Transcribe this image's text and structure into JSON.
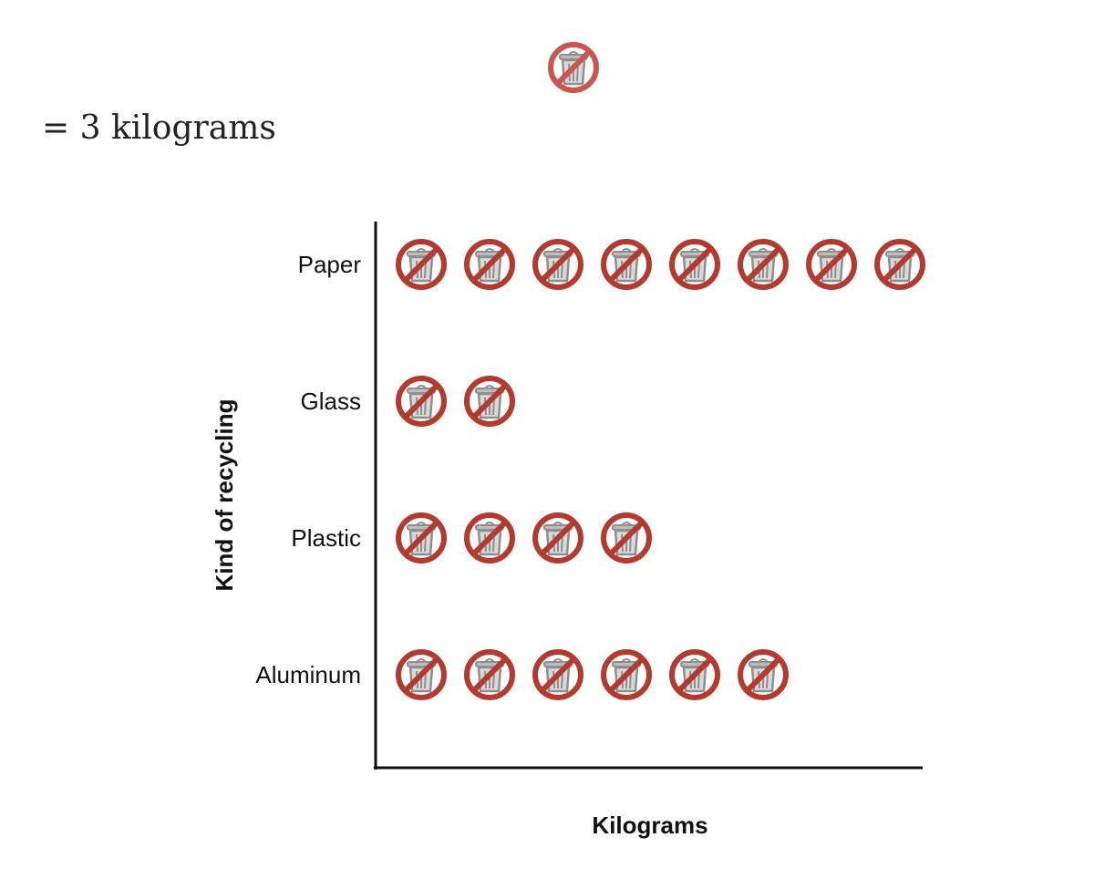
{
  "legend": {
    "equals_text": "= 3 kilograms",
    "icon": "no-trash-icon"
  },
  "chart_data": {
    "type": "pictograph",
    "unit_value": 3,
    "unit_label": "kilograms",
    "xlabel": "Kilograms",
    "ylabel": "Kind of recycling",
    "categories": [
      "Paper",
      "Glass",
      "Plastic",
      "Aluminum"
    ],
    "icon_counts": [
      8,
      2,
      4,
      6
    ],
    "values": [
      24,
      6,
      12,
      18
    ]
  },
  "colors": {
    "icon_ring": "#b33a2e",
    "icon_ring_key": "#c9574d",
    "can": "#8f8f8f",
    "axis": "#111111"
  }
}
